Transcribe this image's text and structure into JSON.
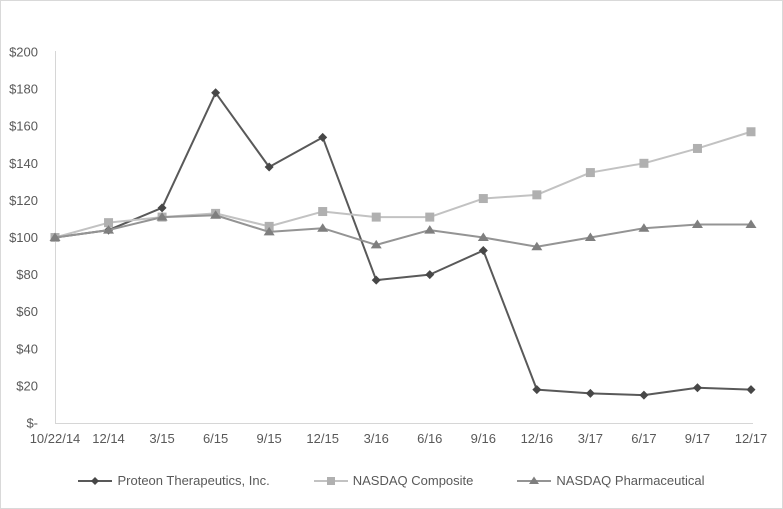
{
  "chart_data": {
    "type": "line",
    "title": "",
    "xlabel": "",
    "ylabel": "",
    "categories": [
      "10/22/14",
      "12/14",
      "3/15",
      "6/15",
      "9/15",
      "12/15",
      "3/16",
      "6/16",
      "9/16",
      "12/16",
      "3/17",
      "6/17",
      "9/17",
      "12/17"
    ],
    "series": [
      {
        "name": "Proteon Therapeutics, Inc.",
        "marker": "diamond",
        "line_color": "#595959",
        "marker_color": "#474747",
        "values": [
          100,
          104,
          116,
          178,
          138,
          154,
          77,
          80,
          93,
          18,
          16,
          15,
          19,
          18
        ]
      },
      {
        "name": "NASDAQ Composite",
        "marker": "square",
        "line_color": "#c2c2c2",
        "marker_color": "#b0b0b0",
        "values": [
          100,
          108,
          111,
          113,
          106,
          114,
          111,
          111,
          121,
          123,
          135,
          140,
          148,
          157
        ]
      },
      {
        "name": "NASDAQ Pharmaceutical",
        "marker": "triangle",
        "line_color": "#949494",
        "marker_color": "#7f7f7f",
        "values": [
          100,
          104,
          111,
          112,
          103,
          105,
          96,
          104,
          100,
          95,
          100,
          105,
          107,
          107
        ]
      }
    ],
    "ylim": [
      0,
      200
    ],
    "y_tick_step": 20,
    "y_tick_labels": [
      "$-",
      "$20",
      "$40",
      "$60",
      "$80",
      "$100",
      "$120",
      "$140",
      "$160",
      "$180",
      "$200"
    ],
    "grid": false,
    "legend_position": "bottom",
    "colors": {
      "axis_line": "#d6d6d6",
      "tick_text": "#595959",
      "frame_border": "#d9d9d9",
      "background": "#ffffff"
    }
  }
}
